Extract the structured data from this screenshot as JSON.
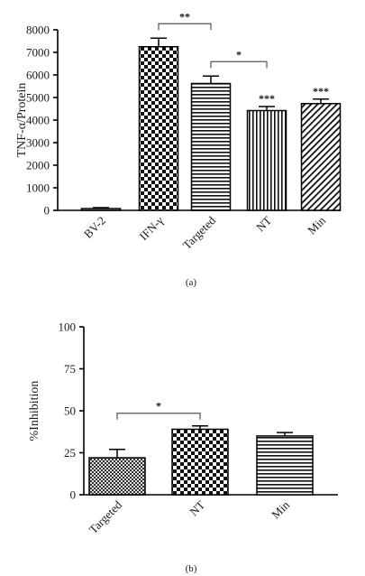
{
  "chart_data": [
    {
      "type": "bar",
      "panel_label": "(a)",
      "ylabel": "TNF-α/Protein",
      "xlabel": "",
      "title": "",
      "ylim": [
        0,
        8000
      ],
      "yticks": [
        0,
        1000,
        2000,
        3000,
        4000,
        5000,
        6000,
        7000,
        8000
      ],
      "categories": [
        "BV-2",
        "IFN-γ",
        "Targeted",
        "NT",
        "Min"
      ],
      "values": [
        80,
        7250,
        5620,
        4420,
        4730
      ],
      "errors": [
        40,
        380,
        330,
        180,
        200
      ],
      "patterns": [
        "solid",
        "checker",
        "hlines",
        "vlines",
        "diag"
      ],
      "bar_stars": [
        "",
        "",
        "",
        "***",
        "***"
      ],
      "brackets": [
        {
          "from": "IFN-γ",
          "to": "Targeted",
          "label": "**"
        },
        {
          "from": "Targeted",
          "to": "NT",
          "label": "*"
        }
      ],
      "grid": false,
      "legend": "none"
    },
    {
      "type": "bar",
      "panel_label": "(b)",
      "ylabel": "%Inhibition",
      "xlabel": "",
      "title": "",
      "ylim": [
        0,
        100
      ],
      "yticks": [
        0,
        25,
        50,
        75,
        100
      ],
      "categories": [
        "Targeted",
        "NT",
        "Min"
      ],
      "values": [
        22,
        39,
        35
      ],
      "errors": [
        5,
        2,
        2
      ],
      "patterns": [
        "finecheck",
        "checker",
        "hlines"
      ],
      "bar_stars": [
        "",
        "",
        ""
      ],
      "brackets": [
        {
          "from": "Targeted",
          "to": "NT",
          "label": "*"
        }
      ],
      "grid": false,
      "legend": "none"
    }
  ]
}
